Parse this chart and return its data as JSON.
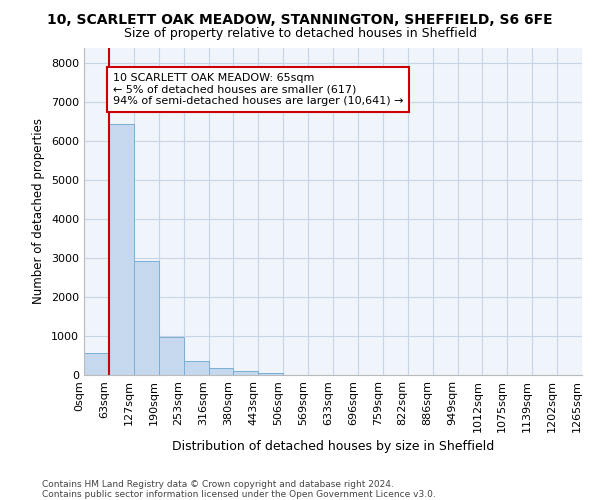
{
  "title_line1": "10, SCARLETT OAK MEADOW, STANNINGTON, SHEFFIELD, S6 6FE",
  "title_line2": "Size of property relative to detached houses in Sheffield",
  "xlabel": "Distribution of detached houses by size in Sheffield",
  "ylabel": "Number of detached properties",
  "bar_values": [
    560,
    6430,
    2920,
    970,
    370,
    170,
    95,
    50,
    0,
    0,
    0,
    0,
    0,
    0,
    0,
    0,
    0,
    0,
    0,
    0
  ],
  "bar_color": "#c5d8ee",
  "bar_edge_color": "#7aaed6",
  "x_labels": [
    "0sqm",
    "63sqm",
    "127sqm",
    "190sqm",
    "253sqm",
    "316sqm",
    "380sqm",
    "443sqm",
    "506sqm",
    "569sqm",
    "633sqm",
    "696sqm",
    "759sqm",
    "822sqm",
    "886sqm",
    "949sqm",
    "1012sqm",
    "1075sqm",
    "1139sqm",
    "1202sqm",
    "1265sqm"
  ],
  "ylim": [
    0,
    8400
  ],
  "yticks": [
    0,
    1000,
    2000,
    3000,
    4000,
    5000,
    6000,
    7000,
    8000
  ],
  "property_line_x": 1.0,
  "property_line_color": "#cc0000",
  "annotation_text": "10 SCARLETT OAK MEADOW: 65sqm\n← 5% of detached houses are smaller (617)\n94% of semi-detached houses are larger (10,641) →",
  "annotation_box_color": "#cc0000",
  "annotation_box_facecolor": "white",
  "footer_line1": "Contains HM Land Registry data © Crown copyright and database right 2024.",
  "footer_line2": "Contains public sector information licensed under the Open Government Licence v3.0.",
  "background_color": "#ffffff",
  "plot_bg_color": "#f0f4fb",
  "grid_color": "#c8d4e8",
  "figsize": [
    6.0,
    5.0
  ],
  "dpi": 100
}
